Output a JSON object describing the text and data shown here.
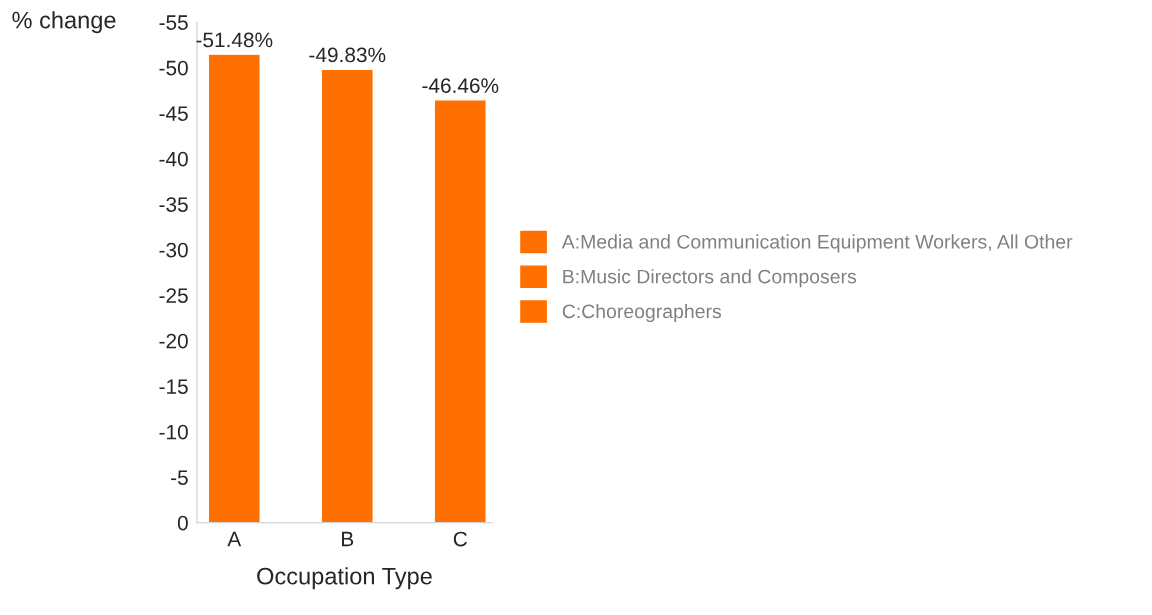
{
  "chart_data": {
    "type": "bar",
    "ylabel": "% change",
    "xlabel": "Occupation Type",
    "categories": [
      "A",
      "B",
      "C"
    ],
    "series": [
      {
        "name": "A:Media and Communication Equipment Workers, All Other",
        "color": "#ff7000",
        "values": [
          -51.48,
          null,
          null
        ],
        "value_labels": [
          "-51.48%",
          null,
          null
        ]
      },
      {
        "name": "B:Music Directors and Composers",
        "color": "#ff7000",
        "values": [
          null,
          -49.83,
          null
        ],
        "value_labels": [
          null,
          "-49.83%",
          null
        ]
      },
      {
        "name": "C:Choreographers",
        "color": "#ff7000",
        "values": [
          null,
          null,
          -46.46
        ],
        "value_labels": [
          null,
          null,
          "-46.46%"
        ]
      }
    ],
    "stacked": true,
    "ylim": [
      0,
      -55
    ],
    "yticks": [
      0,
      -5,
      -10,
      -15,
      -20,
      -25,
      -30,
      -35,
      -40,
      -45,
      -50,
      -55
    ],
    "grid": false,
    "legend": "right"
  }
}
